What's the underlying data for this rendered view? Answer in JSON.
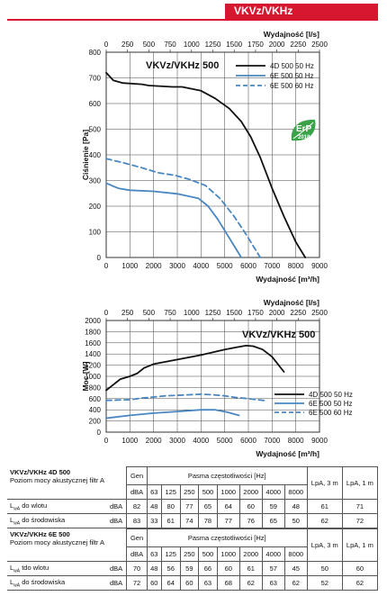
{
  "header": {
    "model": "VKVz/VKHz"
  },
  "erp_badge": {
    "text": "ErP",
    "year": "2018"
  },
  "chart_data": [
    {
      "type": "line",
      "title": "VKVz/VKHz 500",
      "xlabel": "Wydajność [m³/h]",
      "ylabel": "Ciśnienie [Pa]",
      "x2label": "Wydajność [l/s]",
      "xlim": [
        0,
        9000
      ],
      "ylim": [
        0,
        800
      ],
      "x2lim": [
        0,
        2500
      ],
      "xticks": [
        "0",
        "1000",
        "2000",
        "3000",
        "4000",
        "5000",
        "6000",
        "7000",
        "8000",
        "9000"
      ],
      "yticks": [
        "0",
        "100",
        "200",
        "300",
        "400",
        "500",
        "600",
        "700",
        "800"
      ],
      "x2ticks": [
        "0",
        "250",
        "500",
        "750",
        "1000",
        "1250",
        "1500",
        "1750",
        "2000",
        "2250",
        "2500"
      ],
      "grid": true,
      "legend": "top-right",
      "series": [
        {
          "name": "4D 500 50 Hz",
          "color": "#111111",
          "dash": "solid",
          "x": [
            0,
            300,
            700,
            1500,
            1800,
            2800,
            3200,
            4000,
            4600,
            5200,
            5700,
            6100,
            6500,
            7000,
            7500,
            8000,
            8400
          ],
          "y": [
            720,
            690,
            680,
            675,
            670,
            665,
            665,
            650,
            620,
            580,
            530,
            470,
            390,
            270,
            160,
            60,
            0
          ]
        },
        {
          "name": "6E 500 50 Hz",
          "color": "#4a86c0",
          "dash": "solid",
          "x": [
            0,
            500,
            1000,
            2000,
            3000,
            3900,
            4300,
            4700,
            5100,
            5500,
            5700
          ],
          "y": [
            290,
            270,
            262,
            258,
            248,
            230,
            200,
            150,
            90,
            30,
            0
          ]
        },
        {
          "name": "6E 500 60 Hz",
          "color": "#4a86c0",
          "dash": "dashed",
          "x": [
            0,
            700,
            1500,
            2200,
            2900,
            3500,
            4200,
            4800,
            5400,
            5900,
            6500
          ],
          "y": [
            385,
            370,
            350,
            330,
            320,
            305,
            280,
            230,
            160,
            90,
            0
          ]
        }
      ]
    },
    {
      "type": "line",
      "title": "VKVz/VKHz 500",
      "xlabel": "Wydajność [m³/h]",
      "ylabel": "Moc [W]",
      "x2label": "Wydajność [l/s]",
      "xlim": [
        0,
        9000
      ],
      "ylim": [
        0,
        2000
      ],
      "x2lim": [
        0,
        2500
      ],
      "xticks": [
        "0",
        "1000",
        "2000",
        "3000",
        "4000",
        "5000",
        "6000",
        "7000",
        "8000",
        "9000"
      ],
      "yticks": [
        "0",
        "200",
        "400",
        "600",
        "800",
        "1000",
        "1200",
        "1400",
        "1600",
        "1800",
        "2000"
      ],
      "x2ticks": [
        "0",
        "250",
        "500",
        "750",
        "1000",
        "1250",
        "1500",
        "1750",
        "2000",
        "2250",
        "2500"
      ],
      "grid": true,
      "legend": "bottom-right",
      "series": [
        {
          "name": "4D 500 50 Hz",
          "color": "#111111",
          "dash": "solid",
          "x": [
            0,
            300,
            600,
            1000,
            1300,
            1600,
            2000,
            3000,
            4000,
            5000,
            5500,
            5900,
            6200,
            6600,
            7000,
            7500
          ],
          "y": [
            750,
            850,
            950,
            1000,
            1050,
            1150,
            1220,
            1300,
            1380,
            1480,
            1520,
            1550,
            1540,
            1480,
            1350,
            1080
          ]
        },
        {
          "name": "6E 500 50 Hz",
          "color": "#4a86c0",
          "dash": "solid",
          "x": [
            0,
            1000,
            2000,
            3000,
            4000,
            4600,
            5100,
            5600
          ],
          "y": [
            250,
            300,
            340,
            370,
            400,
            400,
            360,
            300
          ]
        },
        {
          "name": "6E 500 60 Hz",
          "color": "#4a86c0",
          "dash": "dashed",
          "x": [
            0,
            1000,
            1500,
            2500,
            3500,
            4000,
            4500,
            5000,
            5500,
            6000,
            6800
          ],
          "y": [
            570,
            580,
            610,
            650,
            670,
            680,
            670,
            650,
            620,
            600,
            560
          ]
        }
      ]
    }
  ],
  "tables": [
    {
      "model": "VKVz/VKHz 4D 500",
      "subtitle": "Poziom mocy akustycznej filtr A",
      "gen": "Gen",
      "bands_title": "Pasma częstotliwości [Hz]",
      "lpa3": "LpA, 3 m",
      "lpa1": "LpA, 1 m",
      "unit": "dBA",
      "bands": [
        "63",
        "125",
        "250",
        "500",
        "1000",
        "2000",
        "4000",
        "8000"
      ],
      "rows": [
        {
          "lw": "L",
          "lwsub": "wA",
          "label": "do wlotu",
          "unit": "dBA",
          "gen": "82",
          "values": [
            "48",
            "80",
            "77",
            "65",
            "64",
            "60",
            "59",
            "48"
          ],
          "lpa3": "61",
          "lpa1": "71"
        },
        {
          "lw": "L",
          "lwsub": "wA",
          "label": "do środowiska",
          "unit": "dBA",
          "gen": "83",
          "values": [
            "33",
            "61",
            "74",
            "78",
            "77",
            "76",
            "65",
            "50"
          ],
          "lpa3": "62",
          "lpa1": "72"
        }
      ]
    },
    {
      "model": "VKVz/VKHz 6E 500",
      "subtitle": "Poziom mocy akustycznej filtr A",
      "gen": "Gen",
      "bands_title": "Pasma częstotliwości [Hz]",
      "lpa3": "LpA, 3 m",
      "lpa1": "LpA, 1 m",
      "unit": "dBA",
      "bands": [
        "63",
        "125",
        "250",
        "500",
        "1000",
        "2000",
        "4000",
        "8000"
      ],
      "rows": [
        {
          "lw": "L",
          "lwsub": "wA",
          "label": "tdo wlotu",
          "unit": "dBA",
          "gen": "70",
          "values": [
            "48",
            "56",
            "59",
            "66",
            "60",
            "61",
            "57",
            "45"
          ],
          "lpa3": "50",
          "lpa1": "60"
        },
        {
          "lw": "L",
          "lwsub": "wA",
          "label": "do środowiska",
          "unit": "dBA",
          "gen": "72",
          "values": [
            "60",
            "64",
            "60",
            "63",
            "68",
            "62",
            "63",
            "62"
          ],
          "lpa3": "52",
          "lpa1": "62"
        }
      ]
    }
  ]
}
